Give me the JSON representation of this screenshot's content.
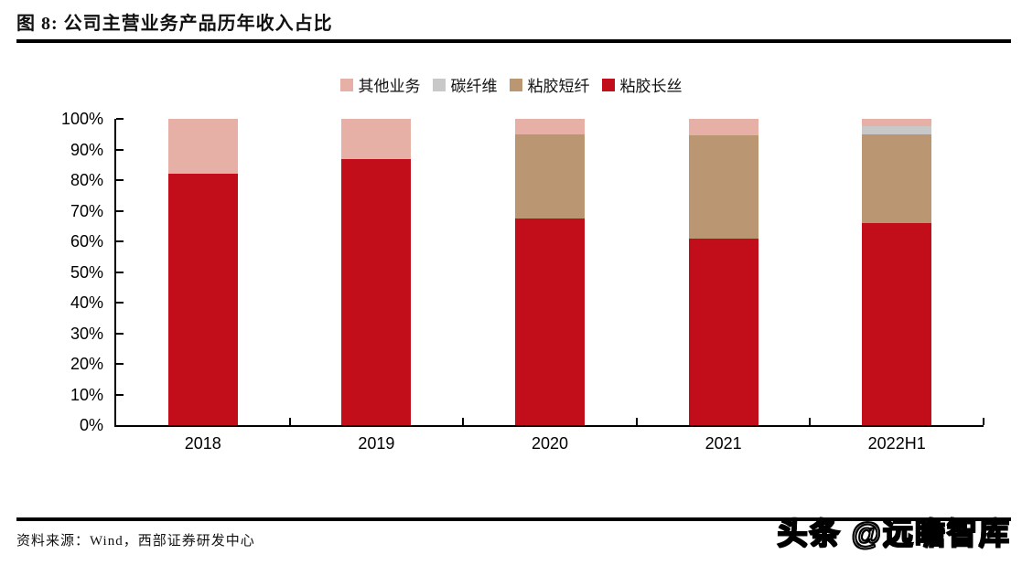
{
  "figure": {
    "title": "图 8: 公司主营业务产品历年收入占比",
    "source_note": "资料来源：Wind，西部证券研发中心",
    "watermark": "头条 @远瞻智库"
  },
  "colors": {
    "viscose_filament_red": "#C20E1A",
    "viscose_staple_tan": "#BA9672",
    "carbon_fiber_gray": "#C8C8C8",
    "other_business_pink": "#E6B0A7",
    "axis_black": "#000000"
  },
  "chart_data": {
    "type": "bar",
    "stacked": true,
    "title": "公司主营业务产品历年收入占比",
    "xlabel": "",
    "ylabel": "",
    "ylim": [
      0,
      100
    ],
    "grid": false,
    "legend_position": "top",
    "categories": [
      "2018",
      "2019",
      "2020",
      "2021",
      "2022H1"
    ],
    "series": [
      {
        "name": "粘胶长丝",
        "color": "#C20E1A",
        "values": [
          82,
          87,
          67.5,
          61,
          66
        ]
      },
      {
        "name": "粘胶短纤",
        "color": "#BA9672",
        "values": [
          0,
          0,
          27.5,
          33.5,
          29
        ]
      },
      {
        "name": "碳纤维",
        "color": "#C8C8C8",
        "values": [
          0,
          0,
          0,
          0,
          2.5
        ]
      },
      {
        "name": "其他业务",
        "color": "#E6B0A7",
        "values": [
          18,
          13,
          5,
          5.5,
          2.5
        ]
      }
    ],
    "legend": [
      {
        "label": "其他业务",
        "color": "#E6B0A7"
      },
      {
        "label": "碳纤维",
        "color": "#C8C8C8"
      },
      {
        "label": "粘胶短纤",
        "color": "#BA9672"
      },
      {
        "label": "粘胶长丝",
        "color": "#C20E1A"
      }
    ],
    "y_ticks": [
      {
        "value": 0,
        "label": "0%"
      },
      {
        "value": 10,
        "label": "10%"
      },
      {
        "value": 20,
        "label": "20%"
      },
      {
        "value": 30,
        "label": "30%"
      },
      {
        "value": 40,
        "label": "40%"
      },
      {
        "value": 50,
        "label": "50%"
      },
      {
        "value": 60,
        "label": "60%"
      },
      {
        "value": 70,
        "label": "70%"
      },
      {
        "value": 80,
        "label": "80%"
      },
      {
        "value": 90,
        "label": "90%"
      },
      {
        "value": 100,
        "label": "100%"
      }
    ]
  }
}
